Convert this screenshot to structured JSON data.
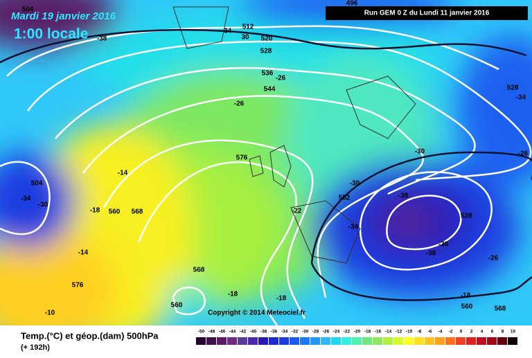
{
  "header": {
    "date": "Mardi 19 janvier 2016",
    "time": "1:00 locale",
    "run": "Run GEM 0 Z du Lundi 11 janvier 2016"
  },
  "map": {
    "labels": [
      "504",
      "496",
      "512",
      "-34",
      "30",
      "520",
      "528",
      "-38",
      "536",
      "-26",
      "544",
      "-26",
      "528",
      "-34",
      "-26",
      "-30",
      "576",
      "-14",
      "504",
      "-34",
      "-30",
      "-18",
      "560",
      "568",
      "-22",
      "552",
      "-38",
      "528",
      "-34",
      "-38",
      "-38",
      "-14",
      "568",
      "-26",
      "576",
      "-18",
      "-18",
      "-18",
      "560",
      "560",
      "568",
      "-10",
      "-30"
    ]
  },
  "footer": {
    "title": "Temp.(°C) et géop.(dam) 500hPa",
    "lead": "(+ 192h)",
    "copyright": "Copyright © 2014 Meteociel.fr"
  },
  "legend": {
    "ticks": [
      -50,
      -48,
      -46,
      -44,
      -42,
      -40,
      -38,
      -36,
      -34,
      -32,
      -30,
      -28,
      -26,
      -24,
      -22,
      -20,
      -18,
      -16,
      -14,
      -12,
      -10,
      -8,
      -6,
      -4,
      -2,
      0,
      2,
      4,
      6,
      8,
      10
    ],
    "colors": [
      "#2a0030",
      "#40104a",
      "#5a1a66",
      "#6e2a80",
      "#5a3a9a",
      "#4a2aa8",
      "#2a18b8",
      "#1c28d0",
      "#1a3ce0",
      "#1a58f0",
      "#1c78f8",
      "#2098f8",
      "#30b8f8",
      "#20d8f0",
      "#30f0e0",
      "#50f0b0",
      "#70e880",
      "#90e860",
      "#b0f040",
      "#d8f830",
      "#ffff20",
      "#ffe020",
      "#ffc020",
      "#ffa020",
      "#ff7020",
      "#f04020",
      "#e02020",
      "#c01020",
      "#a00818",
      "#600010",
      "#100000"
    ]
  }
}
